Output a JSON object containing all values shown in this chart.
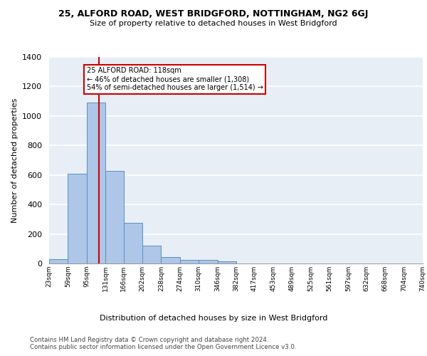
{
  "title1": "25, ALFORD ROAD, WEST BRIDGFORD, NOTTINGHAM, NG2 6GJ",
  "title2": "Size of property relative to detached houses in West Bridgford",
  "xlabel": "Distribution of detached houses by size in West Bridgford",
  "ylabel": "Number of detached properties",
  "footnote1": "Contains HM Land Registry data © Crown copyright and database right 2024.",
  "footnote2": "Contains public sector information licensed under the Open Government Licence v3.0.",
  "bar_edges": [
    23,
    59,
    95,
    131,
    166,
    202,
    238,
    274,
    310,
    346,
    382,
    417,
    453,
    489,
    525,
    561,
    597,
    632,
    668,
    704,
    740
  ],
  "bar_heights": [
    30,
    610,
    1090,
    630,
    275,
    120,
    45,
    22,
    22,
    14,
    0,
    0,
    0,
    0,
    0,
    0,
    0,
    0,
    0,
    0
  ],
  "bar_color": "#aec6e8",
  "bar_edge_color": "#5a8fc2",
  "bg_color": "#e8eef6",
  "grid_color": "#ffffff",
  "vline_x": 118,
  "vline_color": "#cc0000",
  "annotation_text": "25 ALFORD ROAD: 118sqm\n← 46% of detached houses are smaller (1,308)\n54% of semi-detached houses are larger (1,514) →",
  "annotation_box_color": "#ffffff",
  "annotation_box_edge": "#cc0000",
  "ylim": [
    0,
    1400
  ],
  "yticks": [
    0,
    200,
    400,
    600,
    800,
    1000,
    1200,
    1400
  ],
  "xtick_labels": [
    "23sqm",
    "59sqm",
    "95sqm",
    "131sqm",
    "166sqm",
    "202sqm",
    "238sqm",
    "274sqm",
    "310sqm",
    "346sqm",
    "382sqm",
    "417sqm",
    "453sqm",
    "489sqm",
    "525sqm",
    "561sqm",
    "597sqm",
    "632sqm",
    "668sqm",
    "704sqm",
    "740sqm"
  ]
}
